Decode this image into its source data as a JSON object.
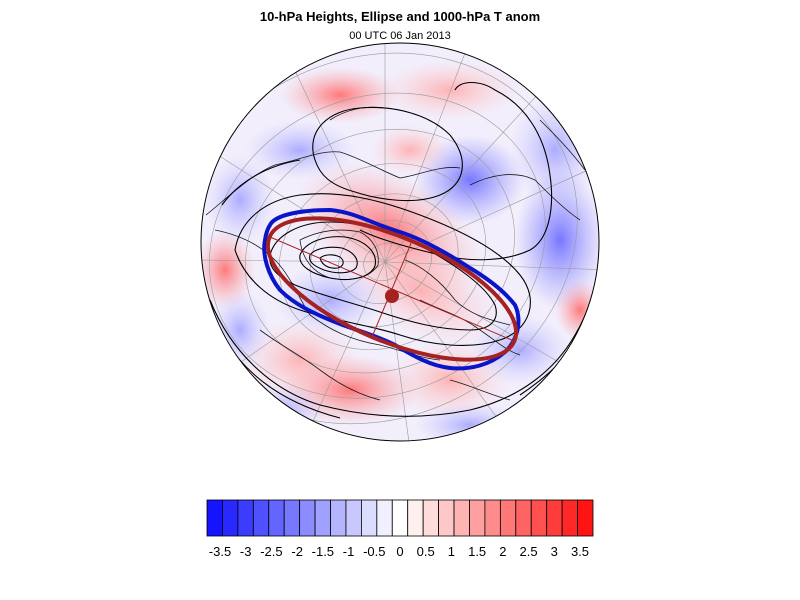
{
  "header": {
    "title": "10-hPa Heights, Ellipse and 1000-hPa T anom",
    "subtitle": "00 UTC 06 Jan 2013"
  },
  "map": {
    "projection": "orthographic",
    "colors": {
      "ellipse": "#a52222",
      "vortex_edge": "#0a14c8",
      "contour": "#000000",
      "grid": "#9a9a9a",
      "coast": "#1a1a1a"
    }
  },
  "colorbar": {
    "labels": [
      "-3.5",
      "-3",
      "-2.5",
      "-2",
      "-1.5",
      "-1",
      "-0.5",
      "0",
      "0.5",
      "1",
      "1.5",
      "2",
      "2.5",
      "3",
      "3.5"
    ],
    "colors": [
      "#1414ff",
      "#2828ff",
      "#3c3cff",
      "#5050ff",
      "#6464ff",
      "#7878ff",
      "#8c8cff",
      "#a0a0ff",
      "#b4b4ff",
      "#c8c8ff",
      "#dcdcff",
      "#f0f0ff",
      "#ffffff",
      "#fff0f0",
      "#ffdcdc",
      "#ffc8c8",
      "#ffb4b4",
      "#ffa0a0",
      "#ff8c8c",
      "#ff7878",
      "#ff6464",
      "#ff5050",
      "#ff3c3c",
      "#ff2828",
      "#ff1414"
    ]
  }
}
